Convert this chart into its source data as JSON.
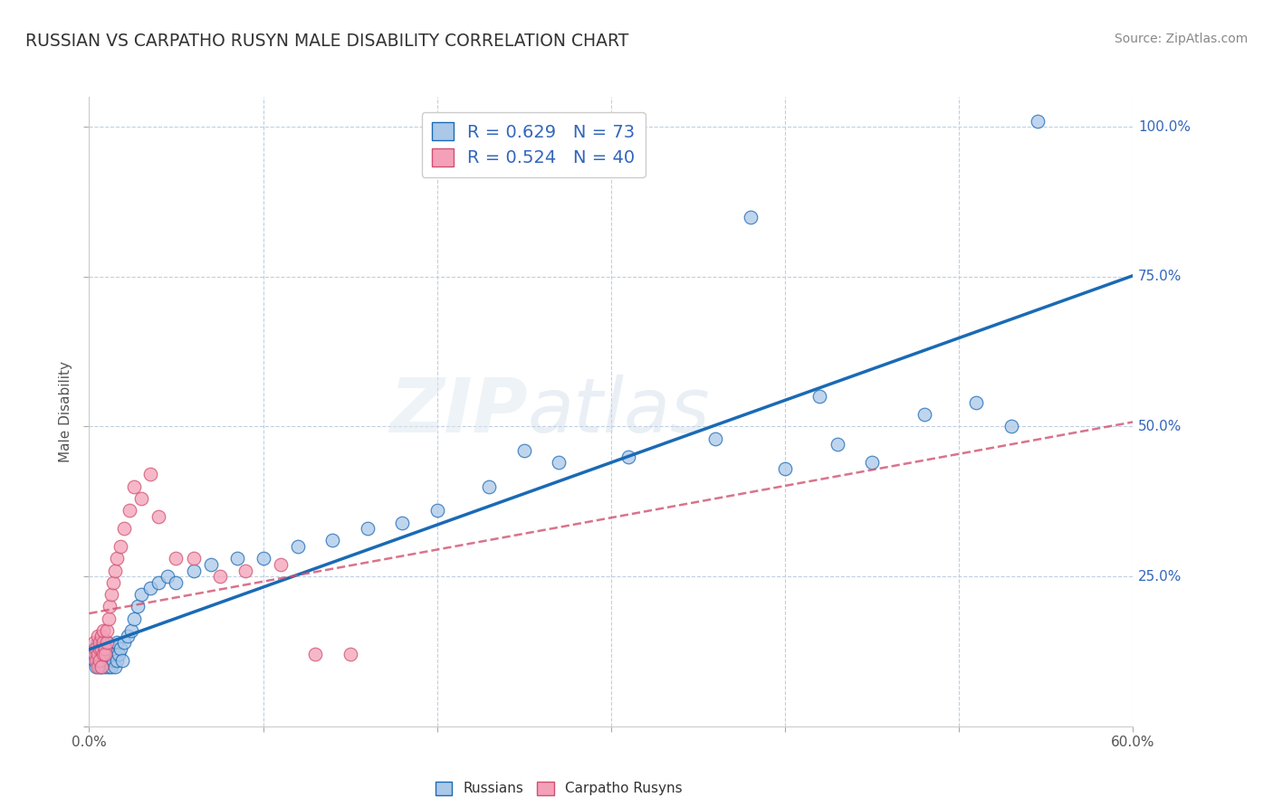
{
  "title": "RUSSIAN VS CARPATHO RUSYN MALE DISABILITY CORRELATION CHART",
  "source": "Source: ZipAtlas.com",
  "ylabel_text": "Male Disability",
  "xlim": [
    0.0,
    0.6
  ],
  "ylim": [
    0.0,
    1.05
  ],
  "russian_R": 0.629,
  "russian_N": 73,
  "rusyn_R": 0.524,
  "rusyn_N": 40,
  "russian_color": "#aac8e8",
  "rusyn_color": "#f4a0b8",
  "trend_russian_color": "#1a6ab5",
  "trend_rusyn_color": "#d05070",
  "background_color": "#ffffff",
  "grid_color": "#c0d0e0",
  "title_color": "#333333",
  "tick_color": "#3366bb",
  "watermark_zip": "ZIP",
  "watermark_atlas": "atlas",
  "russians_x": [
    0.002,
    0.003,
    0.003,
    0.004,
    0.004,
    0.005,
    0.005,
    0.005,
    0.006,
    0.006,
    0.006,
    0.007,
    0.007,
    0.007,
    0.007,
    0.008,
    0.008,
    0.008,
    0.008,
    0.009,
    0.009,
    0.009,
    0.01,
    0.01,
    0.01,
    0.011,
    0.011,
    0.012,
    0.012,
    0.013,
    0.013,
    0.014,
    0.014,
    0.015,
    0.015,
    0.016,
    0.016,
    0.017,
    0.018,
    0.019,
    0.02,
    0.022,
    0.024,
    0.026,
    0.028,
    0.03,
    0.035,
    0.04,
    0.045,
    0.05,
    0.06,
    0.07,
    0.085,
    0.1,
    0.12,
    0.14,
    0.16,
    0.18,
    0.2,
    0.23,
    0.27,
    0.31,
    0.36,
    0.4,
    0.43,
    0.45,
    0.48,
    0.51,
    0.53,
    0.545,
    0.42,
    0.38,
    0.25
  ],
  "russians_y": [
    0.12,
    0.11,
    0.13,
    0.1,
    0.12,
    0.11,
    0.13,
    0.14,
    0.1,
    0.12,
    0.13,
    0.11,
    0.12,
    0.14,
    0.1,
    0.11,
    0.12,
    0.13,
    0.14,
    0.1,
    0.12,
    0.13,
    0.11,
    0.12,
    0.14,
    0.1,
    0.13,
    0.11,
    0.12,
    0.1,
    0.12,
    0.11,
    0.13,
    0.1,
    0.12,
    0.11,
    0.14,
    0.12,
    0.13,
    0.11,
    0.14,
    0.15,
    0.16,
    0.18,
    0.2,
    0.22,
    0.23,
    0.24,
    0.25,
    0.24,
    0.26,
    0.27,
    0.28,
    0.28,
    0.3,
    0.31,
    0.33,
    0.34,
    0.36,
    0.4,
    0.44,
    0.45,
    0.48,
    0.43,
    0.47,
    0.44,
    0.52,
    0.54,
    0.5,
    1.01,
    0.55,
    0.85,
    0.46
  ],
  "rusyns_x": [
    0.003,
    0.003,
    0.004,
    0.004,
    0.005,
    0.005,
    0.005,
    0.006,
    0.006,
    0.006,
    0.007,
    0.007,
    0.007,
    0.008,
    0.008,
    0.008,
    0.009,
    0.009,
    0.01,
    0.01,
    0.011,
    0.012,
    0.013,
    0.014,
    0.015,
    0.016,
    0.018,
    0.02,
    0.023,
    0.026,
    0.03,
    0.035,
    0.04,
    0.05,
    0.06,
    0.075,
    0.09,
    0.11,
    0.13,
    0.15
  ],
  "rusyns_y": [
    0.12,
    0.14,
    0.11,
    0.13,
    0.12,
    0.15,
    0.1,
    0.13,
    0.14,
    0.11,
    0.1,
    0.13,
    0.15,
    0.12,
    0.14,
    0.16,
    0.13,
    0.12,
    0.14,
    0.16,
    0.18,
    0.2,
    0.22,
    0.24,
    0.26,
    0.28,
    0.3,
    0.33,
    0.36,
    0.4,
    0.38,
    0.42,
    0.35,
    0.28,
    0.28,
    0.25,
    0.26,
    0.27,
    0.12,
    0.12
  ]
}
